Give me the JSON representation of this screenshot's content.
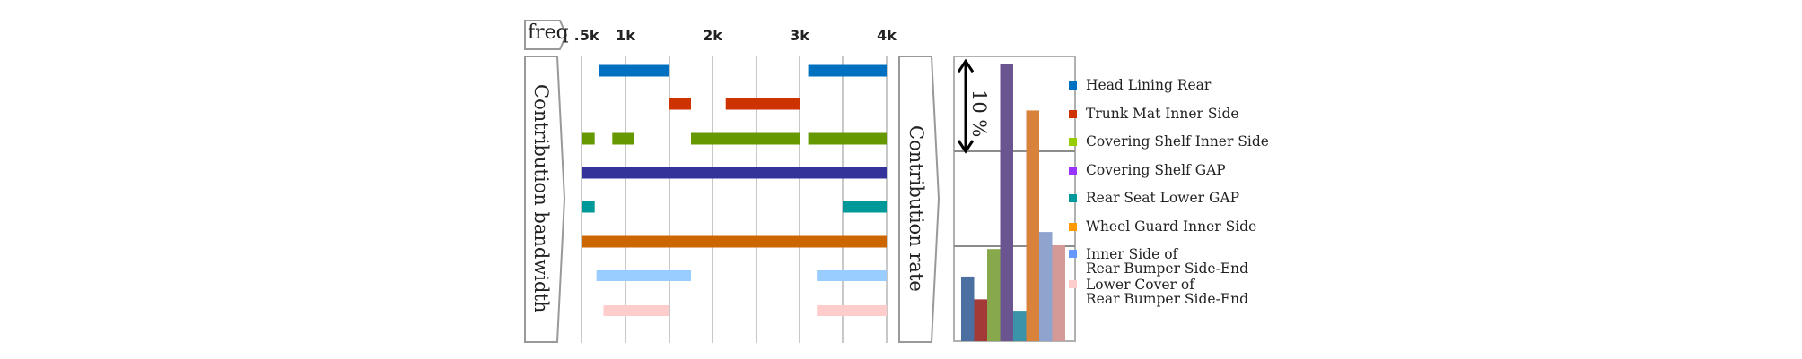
{
  "chart_data": [
    {
      "type": "bar",
      "subtype": "range-timeline",
      "title": "",
      "column_label": "freq",
      "ylabel": "Contribution bandwidth",
      "x_ticks": [
        "0.5k",
        "1k",
        "2k",
        "3k",
        "4k"
      ],
      "x_scale": "octave-linear between labelled ticks",
      "grid": true,
      "series": [
        {
          "name": "Head Lining Rear",
          "color": "#0070c0",
          "ranges": [
            [
              0.7,
              1.5
            ],
            [
              3.1,
              4.0
            ]
          ]
        },
        {
          "name": "Trunk Mat Inner Side",
          "color": "#cc3300",
          "ranges": [
            [
              1.5,
              1.75
            ],
            [
              2.15,
              3.0
            ]
          ]
        },
        {
          "name": "Covering Shelf Inner Side",
          "color": "#669900",
          "ranges": [
            [
              0.5,
              0.65
            ],
            [
              0.85,
              1.1
            ],
            [
              1.75,
              3.0
            ],
            [
              3.1,
              4.0
            ]
          ]
        },
        {
          "name": "Covering Shelf GAP",
          "color": "#333399",
          "ranges": [
            [
              0.5,
              4.0
            ]
          ]
        },
        {
          "name": "Rear Seat Lower GAP",
          "color": "#009999",
          "ranges": [
            [
              0.5,
              0.65
            ],
            [
              3.5,
              4.0
            ]
          ]
        },
        {
          "name": "Wheel Guard Inner Side",
          "color": "#cc6600",
          "ranges": [
            [
              0.5,
              4.0
            ]
          ]
        },
        {
          "name": "Inner Side of Rear Bumper Side-End",
          "color": "#99ccff",
          "ranges": [
            [
              0.67,
              1.75
            ],
            [
              3.2,
              4.0
            ]
          ]
        },
        {
          "name": "Lower Cover of Rear Bumper Side-End",
          "color": "#ffcccc",
          "ranges": [
            [
              0.75,
              1.5
            ],
            [
              3.2,
              4.0
            ]
          ]
        }
      ]
    },
    {
      "type": "bar",
      "title": "",
      "ylabel": "Contribution rate",
      "scale_annotation": "10 %",
      "y_unit": "%",
      "ylim": [
        0,
        30
      ],
      "grid": true,
      "categories": [
        "Head Lining Rear",
        "Trunk Mat Inner Side",
        "Covering Shelf Inner Side",
        "Covering Shelf GAP",
        "Rear Seat Lower GAP",
        "Wheel Guard Inner Side",
        "Inner Side of Rear Bumper Side-End",
        "Lower Cover of Rear Bumper Side-End"
      ],
      "values": [
        6.8,
        4.4,
        9.7,
        29.2,
        3.2,
        24.3,
        11.5,
        10.1
      ],
      "colors": [
        "#4a6fa0",
        "#a33a38",
        "#88a84c",
        "#6b5591",
        "#3b93a9",
        "#d8823c",
        "#8ea4cf",
        "#d39a98"
      ]
    }
  ],
  "legend": {
    "placement": "right",
    "items": [
      {
        "lines": [
          "Head Lining Rear"
        ],
        "color": "#0070c0"
      },
      {
        "lines": [
          "Trunk Mat Inner Side"
        ],
        "color": "#cc3300"
      },
      {
        "lines": [
          "Covering Shelf Inner Side"
        ],
        "color": "#99cc00"
      },
      {
        "lines": [
          "Covering Shelf GAP"
        ],
        "color": "#9933ff"
      },
      {
        "lines": [
          "Rear Seat Lower GAP"
        ],
        "color": "#009999"
      },
      {
        "lines": [
          "Wheel Guard Inner Side"
        ],
        "color": "#ff9900"
      },
      {
        "lines": [
          "Inner Side of",
          "Rear Bumper Side-End"
        ],
        "color": "#6699ff"
      },
      {
        "lines": [
          "Lower Cover of",
          "Rear Bumper Side-End"
        ],
        "color": "#ffcccc"
      }
    ]
  }
}
